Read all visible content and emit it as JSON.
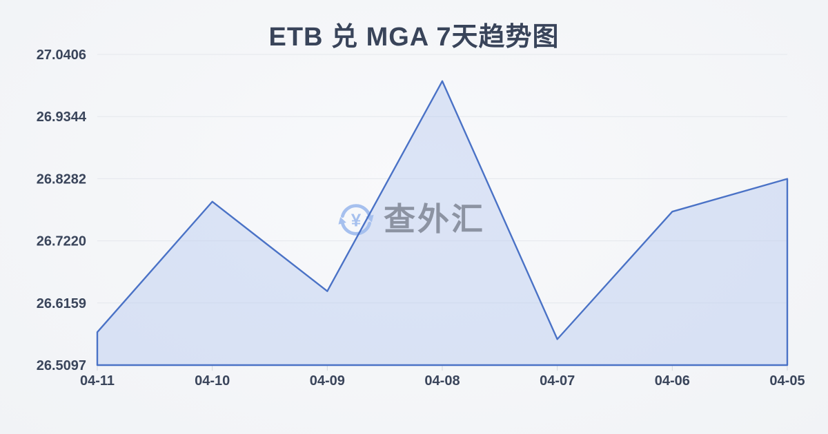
{
  "page": {
    "title": "ETB 兑 MGA 7天趋势图"
  },
  "watermark": {
    "text": "查外汇",
    "icon": "currency-exchange-icon",
    "currency_symbol": "¥"
  },
  "chart_data": {
    "type": "area",
    "title": "ETB 兑 MGA 7天趋势图",
    "categories": [
      "04-11",
      "04-10",
      "04-09",
      "04-08",
      "04-07",
      "04-06",
      "04-05"
    ],
    "values": [
      26.566,
      26.789,
      26.636,
      26.995,
      26.554,
      26.772,
      26.828
    ],
    "y_tick_labels": [
      "27.0406",
      "26.9344",
      "26.8282",
      "26.7220",
      "26.6159",
      "26.5097"
    ],
    "ylim": [
      26.5097,
      27.0406
    ],
    "grid": true,
    "legend": false,
    "x_axis_position": "bottom",
    "y_axis_position": "left"
  },
  "colors": {
    "background_outer": "#f1f3f6",
    "background_inner": "#f8f9fb",
    "title_text": "#39445a",
    "axis_text": "#3a455b",
    "grid_line": "#e4e7ec",
    "tick_mark": "#d4d8de",
    "line": "#4a72c6",
    "area_fill": "rgba(184,202,240,0.45)",
    "watermark_text": "#8c93a2",
    "watermark_icon": "#a6c0ee"
  }
}
